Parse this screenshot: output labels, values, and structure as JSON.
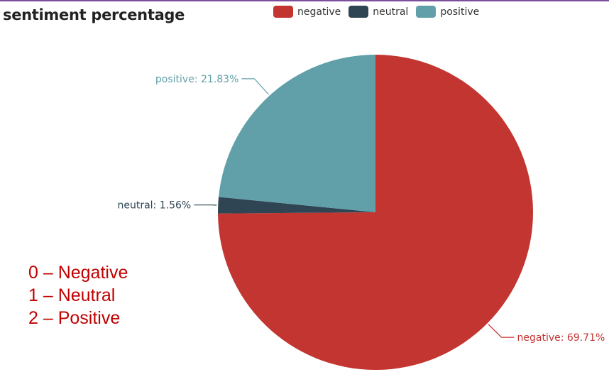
{
  "chart_data": {
    "type": "pie",
    "title": "sentiment percentage",
    "categories": [
      "negative",
      "neutral",
      "positive"
    ],
    "values": [
      69.71,
      1.56,
      21.83
    ],
    "data_labels": [
      "negative: 69.71%",
      "neutral: 1.56%",
      "positive: 21.83%"
    ],
    "colors": [
      "#c23531",
      "#2f4554",
      "#61a0a8"
    ],
    "legend_position": "top-center",
    "start_angle_deg": 90,
    "direction": "clockwise"
  },
  "code_key": [
    "0 – Negative",
    "1 – Neutral",
    "2 – Positive"
  ]
}
